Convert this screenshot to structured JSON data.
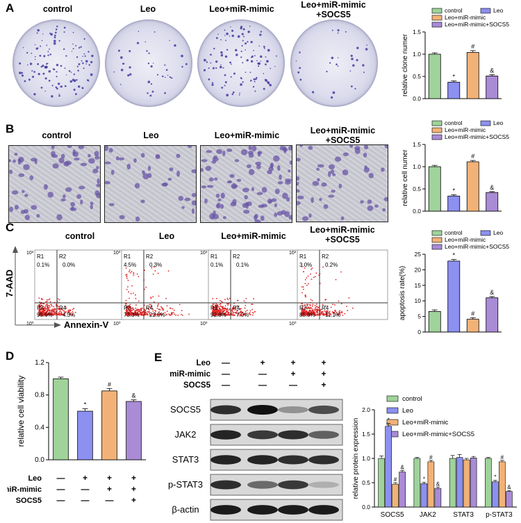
{
  "panel_letters": {
    "a": "A",
    "b": "B",
    "c": "C",
    "d": "D",
    "e": "E"
  },
  "group_labels": [
    "control",
    "Leo",
    "Leo+miR-mimic",
    "Leo+miR-mimic +SOCS5"
  ],
  "group_labels_line1": [
    "control",
    "Leo",
    "Leo+miR-mimic",
    "Leo+miR-mimic"
  ],
  "group_labels_line2": [
    "",
    "",
    "",
    "+SOCS5"
  ],
  "colors": {
    "control": "#9fd39a",
    "leo": "#8c90f0",
    "mimic": "#f2b277",
    "socs5": "#a98bd6",
    "dots": "#e02525",
    "quad_line": "#333333"
  },
  "flow": {
    "ylabel": "7-AAD",
    "xlabel": "Annexin-V",
    "tick_high": "10³",
    "tick_low": "10⁰",
    "regions": [
      "R1",
      "R2",
      "R3",
      "R4"
    ],
    "quadrants": [
      {
        "r1": "0.1%",
        "r2": "0.0%",
        "r3": "95.6%",
        "r4": "4.3%"
      },
      {
        "r1": "4.5%",
        "r2": "0.3%",
        "r3": "73.3%",
        "r4": "22.0%"
      },
      {
        "r1": "0.1%",
        "r2": "0.1%",
        "r3": "92.8%",
        "r4": "7.0%"
      },
      {
        "r1": "3.0%",
        "r2": "0.2%",
        "r3": "85.8%",
        "r4": "11.1%"
      }
    ]
  },
  "legend4": [
    "control",
    "Leo",
    "Leo+miR-mimic",
    "Leo+miR-mimic+SOCS5"
  ],
  "chart_data": [
    {
      "id": "A",
      "type": "bar",
      "categories": [
        "control",
        "Leo",
        "Leo+miR-mimic",
        "Leo+miR-mimic+SOCS5"
      ],
      "values": [
        1.0,
        0.37,
        1.04,
        0.51
      ],
      "errors": [
        0.03,
        0.03,
        0.04,
        0.03
      ],
      "marks": [
        "",
        "*",
        "#",
        "&"
      ],
      "ylabel": "relative clone numer",
      "ylim": [
        0,
        1.5
      ],
      "yticks": [
        "0.0",
        "0.5",
        "1.0",
        "1.5"
      ],
      "legend": "top"
    },
    {
      "id": "B",
      "type": "bar",
      "categories": [
        "control",
        "Leo",
        "Leo+miR-mimic",
        "Leo+miR-mimic+SOCS5"
      ],
      "values": [
        1.0,
        0.34,
        1.11,
        0.42
      ],
      "errors": [
        0.03,
        0.03,
        0.03,
        0.02
      ],
      "marks": [
        "",
        "*",
        "#",
        "&"
      ],
      "ylabel": "relative cell numer",
      "ylim": [
        0,
        1.5
      ],
      "yticks": [
        "0.0",
        "0.5",
        "1.0",
        "1.5"
      ],
      "legend": "top"
    },
    {
      "id": "C",
      "type": "bar",
      "categories": [
        "control",
        "Leo",
        "Leo+miR-mimic",
        "Leo+miR-mimic+SOCS5"
      ],
      "values": [
        6.6,
        22.8,
        4.1,
        11.0
      ],
      "errors": [
        0.5,
        0.5,
        0.5,
        0.4
      ],
      "marks": [
        "",
        "*",
        "#",
        "&"
      ],
      "ylabel": "apoptosis rate(%)",
      "ylim": [
        0,
        25
      ],
      "yticks": [
        "0",
        "5",
        "10",
        "15",
        "20",
        "25"
      ],
      "legend": "top"
    },
    {
      "id": "D",
      "type": "bar",
      "categories": [
        "control",
        "Leo",
        "Leo+miR-mimic",
        "Leo+miR-mimic+SOCS5"
      ],
      "values": [
        1.0,
        0.6,
        0.85,
        0.72
      ],
      "errors": [
        0.02,
        0.03,
        0.03,
        0.02
      ],
      "marks": [
        "",
        "*",
        "#",
        "&"
      ],
      "ylabel": "relative cell viability",
      "ylim": [
        0,
        1.2
      ],
      "yticks": [
        "0.0",
        "0.4",
        "0.8",
        "1.2"
      ]
    },
    {
      "id": "E",
      "type": "bar",
      "categories": [
        "SOCS5",
        "JAK2",
        "STAT3",
        "p-STAT3"
      ],
      "series": [
        {
          "name": "control",
          "values": [
            1.0,
            1.0,
            1.0,
            1.0
          ],
          "errors": [
            0.05,
            0.02,
            0.06,
            0.02
          ],
          "marks": [
            "",
            "",
            "",
            ""
          ]
        },
        {
          "name": "Leo",
          "values": [
            1.66,
            0.48,
            1.02,
            0.52
          ],
          "errors": [
            0.06,
            0.03,
            0.06,
            0.03
          ],
          "marks": [
            "*",
            "*",
            "",
            "*"
          ]
        },
        {
          "name": "Leo+miR-mimic",
          "values": [
            0.47,
            0.93,
            0.97,
            0.93
          ],
          "errors": [
            0.03,
            0.03,
            0.03,
            0.03
          ],
          "marks": [
            "#",
            "#",
            "",
            "#"
          ]
        },
        {
          "name": "Leo+miR-mimic+SOCS5",
          "values": [
            0.72,
            0.38,
            1.01,
            0.32
          ],
          "errors": [
            0.03,
            0.03,
            0.03,
            0.02
          ],
          "marks": [
            "&",
            "&",
            "",
            "&"
          ]
        }
      ],
      "ylabel": "relative protein expression",
      "ylim": [
        0,
        2.0
      ],
      "yticks": [
        "0.0",
        "0.5",
        "1.0",
        "1.5",
        "2.0"
      ],
      "legend": "top"
    }
  ],
  "treatment_rows": {
    "labels": [
      "Leo",
      "miR-mimic",
      "SOCS5"
    ],
    "signs": [
      [
        "—",
        "+",
        "+",
        "+"
      ],
      [
        "—",
        "—",
        "+",
        "+"
      ],
      [
        "—",
        "—",
        "—",
        "+"
      ]
    ]
  },
  "blot": {
    "proteins": [
      "SOCS5",
      "JAK2",
      "STAT3",
      "p-STAT3",
      "β-actin"
    ]
  }
}
